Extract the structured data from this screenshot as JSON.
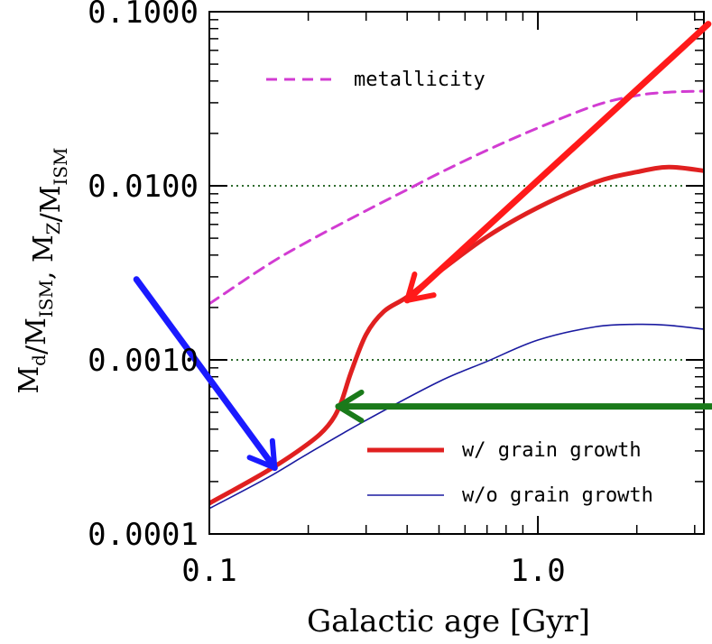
{
  "chart_data": {
    "type": "line",
    "xlabel": "Galactic age [Gyr]",
    "ylabel": {
      "parts": [
        {
          "main": "M",
          "sub": "d"
        },
        {
          "main": "/M",
          "sub": "ISM"
        },
        {
          "main": ",  M",
          "sub": "Z"
        },
        {
          "main": "/M",
          "sub": "ISM"
        }
      ]
    },
    "x_scale": "log",
    "y_scale": "log",
    "xlim": [
      0.1,
      3.2
    ],
    "ylim": [
      0.0001,
      0.1
    ],
    "x_ticks": [
      {
        "value": 0.1,
        "label": "0.1"
      },
      {
        "value": 1.0,
        "label": "1.0"
      }
    ],
    "y_ticks": [
      {
        "value": 0.0001,
        "label": "0.0001"
      },
      {
        "value": 0.001,
        "label": "0.0010"
      },
      {
        "value": 0.01,
        "label": "0.0100"
      },
      {
        "value": 0.1,
        "label": "0.1000"
      }
    ],
    "reference_lines": [
      {
        "y": 0.001,
        "color": "#2e6b2e",
        "style": "dotted"
      },
      {
        "y": 0.01,
        "color": "#2e6b2e",
        "style": "dotted"
      }
    ],
    "series": [
      {
        "name": "metallicity",
        "color": "#d23cd2",
        "style": "dashed",
        "x": [
          0.1,
          0.15,
          0.2,
          0.3,
          0.4,
          0.5,
          0.7,
          1.0,
          1.5,
          2.0,
          2.5,
          3.2
        ],
        "y": [
          0.0021,
          0.0035,
          0.0048,
          0.0072,
          0.0095,
          0.0118,
          0.016,
          0.0215,
          0.029,
          0.033,
          0.0345,
          0.035
        ]
      },
      {
        "name": "w/ grain growth",
        "color": "#e02020",
        "style": "solid-thick",
        "x": [
          0.1,
          0.15,
          0.2,
          0.23,
          0.25,
          0.27,
          0.3,
          0.34,
          0.4,
          0.5,
          0.7,
          1.0,
          1.5,
          2.0,
          2.5,
          3.2
        ],
        "y": [
          0.00015,
          0.00023,
          0.00033,
          0.00042,
          0.00055,
          0.00085,
          0.0014,
          0.0019,
          0.0023,
          0.0032,
          0.0051,
          0.0075,
          0.0105,
          0.012,
          0.0128,
          0.0122
        ]
      },
      {
        "name": "w/o grain growth",
        "color": "#1a1aa0",
        "style": "solid-thin",
        "x": [
          0.1,
          0.15,
          0.2,
          0.3,
          0.5,
          0.7,
          1.0,
          1.5,
          2.0,
          2.5,
          3.2
        ],
        "y": [
          0.00014,
          0.00021,
          0.00029,
          0.00045,
          0.00075,
          0.00098,
          0.0013,
          0.00155,
          0.0016,
          0.00158,
          0.0015
        ]
      }
    ],
    "legend": {
      "placement": "inside"
    },
    "annotations": [
      {
        "type": "arrow",
        "color": "#ff1a1a",
        "from": [
          3.3,
          0.085
        ],
        "to": [
          0.4,
          0.0022
        ]
      },
      {
        "type": "arrow",
        "color": "#1a1aff",
        "from": [
          0.06,
          0.0029
        ],
        "to": [
          0.158,
          0.00024
        ]
      },
      {
        "type": "arrow",
        "color": "#1a7a1a",
        "from": [
          3.4,
          0.00054
        ],
        "to": [
          0.247,
          0.00054
        ]
      }
    ]
  }
}
